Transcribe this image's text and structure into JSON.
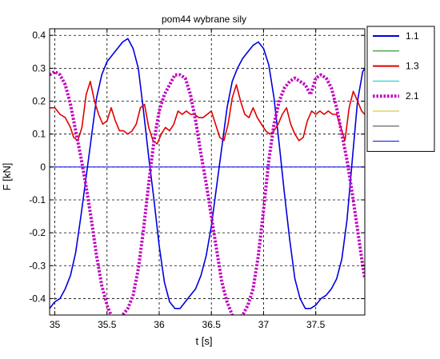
{
  "chart_data": {
    "type": "line",
    "title": "pom44 wybrane sily",
    "xlabel": "t [s]",
    "ylabel": "F [kN]",
    "xlim": [
      34.95,
      37.97
    ],
    "ylim": [
      -0.45,
      0.42
    ],
    "xticks": [
      35,
      35.5,
      36,
      36.5,
      37,
      37.5
    ],
    "xtick_labels": [
      "35",
      "35.5",
      "36",
      "36.5",
      "37",
      "37.5"
    ],
    "yticks": [
      0.4,
      0.3,
      0.2,
      0.1,
      0,
      -0.1,
      -0.2,
      -0.3,
      -0.4
    ],
    "ytick_labels": [
      "0.4",
      "0.3",
      "0.2",
      "0.1",
      "0",
      "-0.1",
      "-0.2",
      "-0.3",
      "-0.4"
    ],
    "grid": true,
    "legend_position": "outside-right",
    "series": [
      {
        "name": "1.1",
        "color": "#0000e0",
        "style": "solid",
        "x": [
          34.95,
          35.0,
          35.05,
          35.1,
          35.15,
          35.2,
          35.25,
          35.3,
          35.35,
          35.4,
          35.45,
          35.5,
          35.55,
          35.6,
          35.65,
          35.7,
          35.75,
          35.8,
          35.85,
          35.9,
          35.95,
          36.0,
          36.05,
          36.1,
          36.15,
          36.2,
          36.25,
          36.3,
          36.35,
          36.4,
          36.45,
          36.5,
          36.55,
          36.6,
          36.65,
          36.7,
          36.75,
          36.8,
          36.85,
          36.9,
          36.95,
          37.0,
          37.05,
          37.1,
          37.15,
          37.2,
          37.25,
          37.3,
          37.35,
          37.4,
          37.45,
          37.5,
          37.55,
          37.6,
          37.65,
          37.7,
          37.75,
          37.8,
          37.85,
          37.9,
          37.95,
          37.97
        ],
        "y": [
          -0.43,
          -0.41,
          -0.4,
          -0.37,
          -0.33,
          -0.26,
          -0.15,
          -0.03,
          0.09,
          0.21,
          0.28,
          0.32,
          0.34,
          0.36,
          0.38,
          0.39,
          0.36,
          0.3,
          0.17,
          0.03,
          -0.1,
          -0.24,
          -0.35,
          -0.41,
          -0.43,
          -0.43,
          -0.41,
          -0.39,
          -0.37,
          -0.33,
          -0.27,
          -0.18,
          -0.06,
          0.06,
          0.18,
          0.26,
          0.3,
          0.33,
          0.35,
          0.37,
          0.38,
          0.36,
          0.31,
          0.21,
          0.07,
          -0.08,
          -0.22,
          -0.34,
          -0.4,
          -0.43,
          -0.43,
          -0.42,
          -0.4,
          -0.39,
          -0.37,
          -0.34,
          -0.28,
          -0.16,
          0.02,
          0.2,
          0.29,
          0.3
        ]
      },
      {
        "name": "",
        "color": "#008000",
        "style": "solid",
        "x": [],
        "y": []
      },
      {
        "name": "1.3",
        "color": "#e00000",
        "style": "solid",
        "x": [
          34.95,
          35.0,
          35.05,
          35.1,
          35.15,
          35.18,
          35.22,
          35.26,
          35.3,
          35.34,
          35.38,
          35.42,
          35.46,
          35.5,
          35.54,
          35.58,
          35.62,
          35.66,
          35.7,
          35.74,
          35.78,
          35.82,
          35.86,
          35.9,
          35.94,
          35.98,
          36.02,
          36.06,
          36.1,
          36.14,
          36.18,
          36.22,
          36.26,
          36.3,
          36.34,
          36.38,
          36.42,
          36.46,
          36.5,
          36.54,
          36.58,
          36.62,
          36.66,
          36.7,
          36.74,
          36.78,
          36.82,
          36.86,
          36.9,
          36.94,
          36.98,
          37.02,
          37.06,
          37.1,
          37.14,
          37.18,
          37.22,
          37.26,
          37.3,
          37.34,
          37.38,
          37.42,
          37.46,
          37.5,
          37.54,
          37.58,
          37.62,
          37.66,
          37.7,
          37.74,
          37.78,
          37.82,
          37.86,
          37.9,
          37.94,
          37.97
        ],
        "y": [
          0.18,
          0.18,
          0.16,
          0.15,
          0.12,
          0.09,
          0.08,
          0.12,
          0.22,
          0.26,
          0.2,
          0.16,
          0.13,
          0.14,
          0.18,
          0.14,
          0.11,
          0.11,
          0.1,
          0.11,
          0.13,
          0.18,
          0.19,
          0.12,
          0.08,
          0.07,
          0.1,
          0.12,
          0.11,
          0.13,
          0.17,
          0.16,
          0.17,
          0.16,
          0.16,
          0.15,
          0.15,
          0.16,
          0.17,
          0.13,
          0.09,
          0.08,
          0.13,
          0.21,
          0.25,
          0.2,
          0.16,
          0.15,
          0.18,
          0.15,
          0.13,
          0.11,
          0.1,
          0.11,
          0.13,
          0.16,
          0.18,
          0.13,
          0.1,
          0.08,
          0.09,
          0.14,
          0.17,
          0.16,
          0.17,
          0.16,
          0.17,
          0.16,
          0.16,
          0.12,
          0.08,
          0.18,
          0.23,
          0.2,
          0.17,
          0.16
        ]
      },
      {
        "name": "",
        "color": "#00c8c8",
        "style": "solid",
        "x": [],
        "y": []
      },
      {
        "name": "2.1",
        "color": "#c000c0",
        "style": "dotted",
        "x": [
          34.95,
          35.0,
          35.05,
          35.1,
          35.15,
          35.2,
          35.25,
          35.3,
          35.35,
          35.4,
          35.45,
          35.5,
          35.55,
          35.6,
          35.65,
          35.7,
          35.75,
          35.8,
          35.85,
          35.9,
          35.95,
          36.0,
          36.05,
          36.1,
          36.15,
          36.2,
          36.25,
          36.3,
          36.35,
          36.4,
          36.45,
          36.5,
          36.55,
          36.6,
          36.65,
          36.7,
          36.75,
          36.8,
          36.85,
          36.9,
          36.95,
          37.0,
          37.05,
          37.1,
          37.15,
          37.2,
          37.25,
          37.3,
          37.35,
          37.4,
          37.45,
          37.5,
          37.55,
          37.6,
          37.65,
          37.7,
          37.75,
          37.8,
          37.85,
          37.9,
          37.95,
          37.97
        ],
        "y": [
          0.28,
          0.29,
          0.28,
          0.25,
          0.19,
          0.11,
          0.03,
          -0.06,
          -0.16,
          -0.27,
          -0.36,
          -0.42,
          -0.46,
          -0.47,
          -0.45,
          -0.43,
          -0.39,
          -0.31,
          -0.19,
          -0.05,
          0.08,
          0.17,
          0.22,
          0.25,
          0.28,
          0.28,
          0.27,
          0.22,
          0.14,
          0.04,
          -0.05,
          -0.15,
          -0.25,
          -0.35,
          -0.41,
          -0.45,
          -0.46,
          -0.45,
          -0.42,
          -0.37,
          -0.27,
          -0.13,
          0.02,
          0.13,
          0.2,
          0.24,
          0.26,
          0.27,
          0.26,
          0.25,
          0.22,
          0.27,
          0.28,
          0.27,
          0.24,
          0.18,
          0.1,
          0.02,
          -0.08,
          -0.19,
          -0.3,
          -0.34
        ]
      },
      {
        "name": "",
        "color": "#c8c800",
        "style": "solid",
        "x": [],
        "y": []
      },
      {
        "name": "",
        "color": "#404040",
        "style": "solid",
        "x": [],
        "y": []
      },
      {
        "name": "",
        "color": "#0000e0",
        "style": "solid",
        "x": [],
        "y": []
      }
    ],
    "zero_line": {
      "y": 0,
      "color": "#0000ff"
    }
  }
}
